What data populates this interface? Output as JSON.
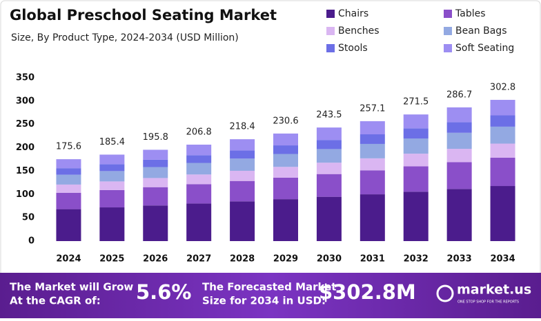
{
  "chart_data": {
    "type": "stacked-bar",
    "title": "Global Preschool Seating Market",
    "subtitle": "Size, By Product Type, 2024-2034 (USD Million)",
    "categories": [
      "2024",
      "2025",
      "2026",
      "2027",
      "2028",
      "2029",
      "2030",
      "2031",
      "2032",
      "2033",
      "2034"
    ],
    "series": [
      {
        "name": "Chairs",
        "color": "#4b1c8c",
        "values": [
          68.5,
          72.3,
          76.4,
          80.7,
          85.2,
          89.9,
          95.0,
          100.3,
          105.9,
          111.8,
          118.1
        ]
      },
      {
        "name": "Tables",
        "color": "#8a4fc9",
        "values": [
          35.1,
          37.1,
          39.2,
          41.4,
          43.7,
          46.1,
          48.7,
          51.4,
          54.3,
          57.3,
          60.6
        ]
      },
      {
        "name": "Benches",
        "color": "#dab6f2",
        "values": [
          17.6,
          18.5,
          19.6,
          20.7,
          21.8,
          23.1,
          24.4,
          25.7,
          27.2,
          28.7,
          30.3
        ]
      },
      {
        "name": "Bean Bags",
        "color": "#93a9e2",
        "values": [
          21.1,
          22.2,
          23.5,
          24.8,
          26.2,
          27.7,
          29.2,
          30.9,
          32.6,
          34.4,
          36.3
        ]
      },
      {
        "name": "Stools",
        "color": "#6c6fe6",
        "values": [
          14.0,
          14.8,
          15.7,
          16.5,
          17.5,
          18.4,
          19.5,
          20.6,
          21.7,
          22.9,
          24.2
        ]
      },
      {
        "name": "Soft Seating",
        "color": "#9d8ef2",
        "values": [
          19.3,
          20.5,
          21.4,
          22.7,
          24.0,
          25.4,
          26.7,
          28.2,
          29.8,
          31.6,
          33.3
        ]
      }
    ],
    "totals": [
      175.6,
      185.4,
      195.8,
      206.8,
      218.4,
      230.6,
      243.5,
      257.1,
      271.5,
      286.7,
      302.8
    ],
    "ylim": [
      0,
      350
    ],
    "yticks": [
      0,
      50,
      100,
      150,
      200,
      250,
      300,
      350
    ],
    "grid": false
  },
  "footer": {
    "cagr_label": [
      "The Market will Grow",
      "At the CAGR of:"
    ],
    "cagr": "5.6%",
    "forecast_label": [
      "The Forecasted Market",
      "Size for 2034 in USD:"
    ],
    "forecast": "$302.8M",
    "brand": "market.us",
    "tagline": "ONE STOP SHOP FOR THE REPORTS"
  }
}
